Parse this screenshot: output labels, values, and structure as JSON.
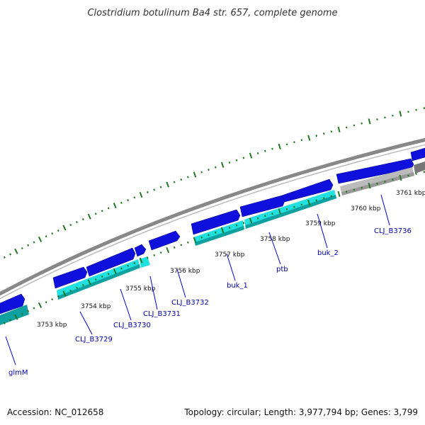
{
  "title": "Clostridium botulinum Ba4 str. 657, complete genome",
  "footer": {
    "accession": "Accession: NC_012658",
    "summary": "Topology: circular; Length: 3,977,794 bp; Genes: 3,799"
  },
  "colors": {
    "background": "#ffffff",
    "backbone": "#888888",
    "cds_blue": "#1010dd",
    "gene_cyan": "#22e0e0",
    "gene_teal": "#10a0a0",
    "gene_gray": "#bbbbbb",
    "ticks_green": "#227722",
    "label_blue": "#0000aa"
  },
  "scale_labels": [
    {
      "label": "3753 kbp"
    },
    {
      "label": "3754 kbp"
    },
    {
      "label": "3755 kbp"
    },
    {
      "label": "3756 kbp"
    },
    {
      "label": "3757 kbp"
    },
    {
      "label": "3758 kbp"
    },
    {
      "label": "3759 kbp"
    },
    {
      "label": "3760 kbp"
    },
    {
      "label": "3761 kbp"
    }
  ],
  "gene_labels": [
    {
      "label": "glmM"
    },
    {
      "label": "CLJ_B3729"
    },
    {
      "label": "CLJ_B3730"
    },
    {
      "label": "CLJ_B3731"
    },
    {
      "label": "CLJ_B3732"
    },
    {
      "label": "buk_1"
    },
    {
      "label": "ptb"
    },
    {
      "label": "buk_2"
    },
    {
      "label": "CLJ_B3736"
    }
  ]
}
